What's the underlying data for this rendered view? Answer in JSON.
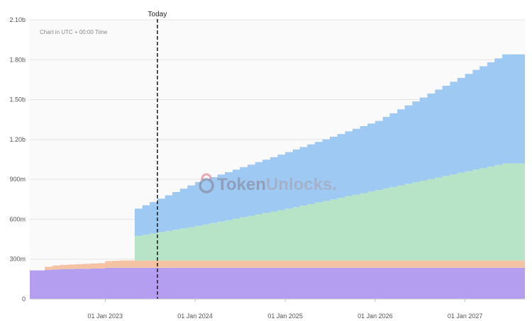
{
  "chart_data": {
    "type": "area",
    "stacked": true,
    "title": "",
    "xlabel": "",
    "ylabel": "",
    "note": "Chart in UTC + 00:00 Time",
    "watermark": {
      "brand": "Token",
      "brand_accent": "Unlocks."
    },
    "today_label": "Today",
    "today_date": "2023-08-01",
    "x_range": [
      "2022-03-01",
      "2027-09-01"
    ],
    "ylim": [
      0,
      2100000000
    ],
    "y_ticks": [
      {
        "value": 0,
        "label": "0"
      },
      {
        "value": 300000000,
        "label": "300m"
      },
      {
        "value": 600000000,
        "label": "600m"
      },
      {
        "value": 900000000,
        "label": "900m"
      },
      {
        "value": 1200000000,
        "label": "1.20b"
      },
      {
        "value": 1500000000,
        "label": "1.50b"
      },
      {
        "value": 1800000000,
        "label": "1.80b"
      },
      {
        "value": 2100000000,
        "label": "2.10b"
      }
    ],
    "x_ticks": [
      {
        "date": "2023-01-01",
        "label": "01 Jan 2023"
      },
      {
        "date": "2024-01-01",
        "label": "01 Jan 2024"
      },
      {
        "date": "2025-01-01",
        "label": "01 Jan 2025"
      },
      {
        "date": "2026-01-01",
        "label": "01 Jan 2026"
      },
      {
        "date": "2027-01-01",
        "label": "01 Jan 2027"
      }
    ],
    "grid": true,
    "series": [
      {
        "color": "#b49ef0",
        "points": [
          [
            "2022-03-01",
            215000000
          ],
          [
            "2022-04-01",
            215000000
          ],
          [
            "2022-07-01",
            225000000
          ],
          [
            "2022-12-01",
            230000000
          ],
          [
            "2023-01-01",
            235000000
          ],
          [
            "2027-09-01",
            235000000
          ]
        ]
      },
      {
        "color": "#f3c3a4",
        "points": [
          [
            "2022-03-01",
            0
          ],
          [
            "2022-04-01",
            0
          ],
          [
            "2022-05-01",
            25000000
          ],
          [
            "2022-06-01",
            30000000
          ],
          [
            "2022-09-01",
            35000000
          ],
          [
            "2022-12-01",
            40000000
          ],
          [
            "2023-01-01",
            50000000
          ],
          [
            "2023-03-01",
            55000000
          ],
          [
            "2027-09-01",
            55000000
          ]
        ]
      },
      {
        "color": "#b7e4c7",
        "points": [
          [
            "2022-03-01",
            0
          ],
          [
            "2023-04-01",
            0
          ],
          [
            "2023-05-01",
            185000000
          ],
          [
            "2024-01-01",
            260000000
          ],
          [
            "2025-01-01",
            390000000
          ],
          [
            "2026-01-01",
            530000000
          ],
          [
            "2027-06-01",
            730000000
          ],
          [
            "2027-09-01",
            730000000
          ]
        ]
      },
      {
        "color": "#9ec9f2",
        "points": [
          [
            "2022-03-01",
            0
          ],
          [
            "2023-04-01",
            0
          ],
          [
            "2023-05-01",
            205000000
          ],
          [
            "2024-01-01",
            330000000
          ],
          [
            "2025-01-01",
            425000000
          ],
          [
            "2026-01-01",
            520000000
          ],
          [
            "2027-06-01",
            820000000
          ],
          [
            "2027-09-01",
            820000000
          ]
        ]
      }
    ]
  }
}
